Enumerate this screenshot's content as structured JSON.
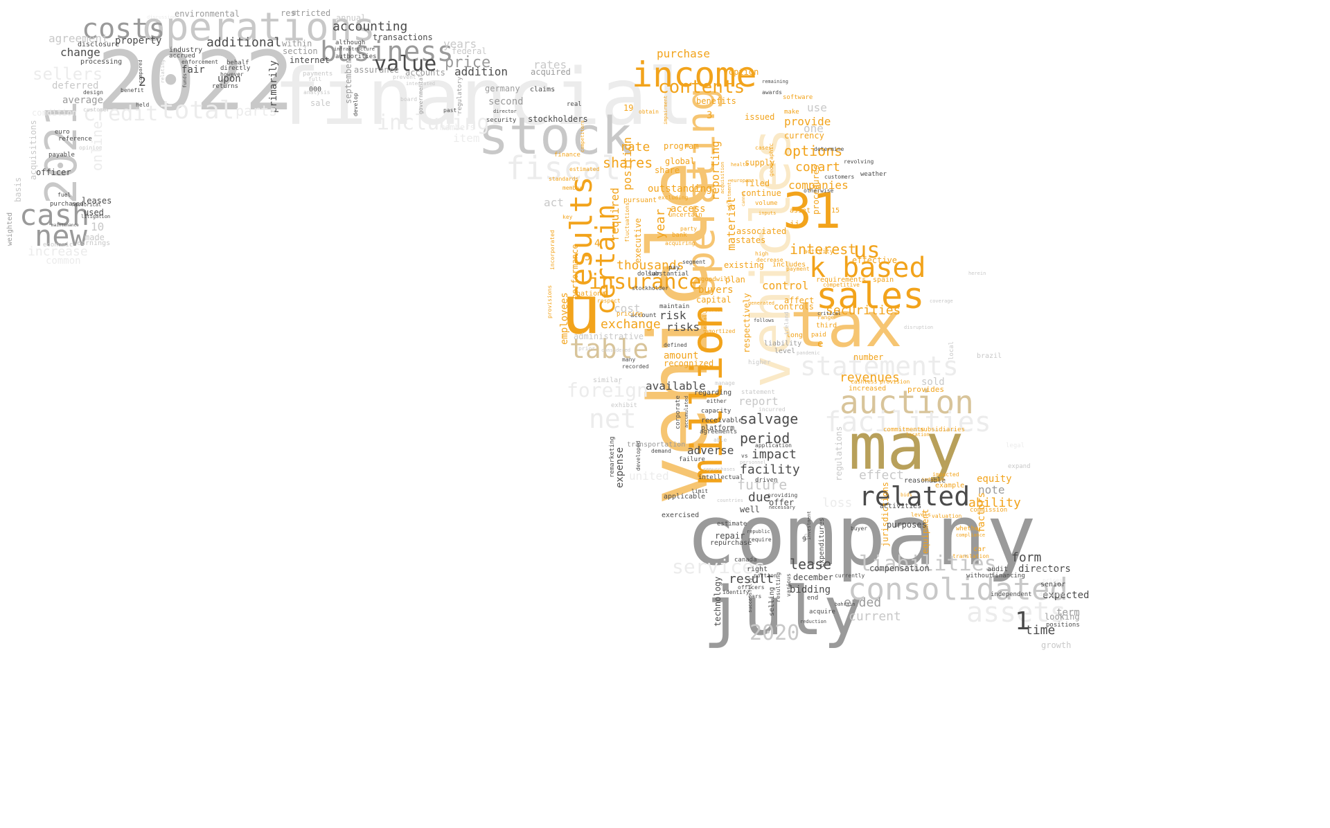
{
  "colors": {
    "background": "#ffffff",
    "gray_dark": "#4a4a4a",
    "gray_mid": "#9a9a9a",
    "gray_light": "#c8c8c8",
    "gray_pale": "#ececec",
    "orange": "#f2a31b",
    "orange_light": "#f6c572",
    "orange_pale": "#fae9c7",
    "gold": "#b8a05a",
    "tan": "#d8c49a"
  },
  "words": [
    {
      "text": "company"
    },
    {
      "text": "vehicle"
    },
    {
      "text": "july"
    },
    {
      "text": "2022"
    },
    {
      "text": "financial"
    },
    {
      "text": "vehicles"
    },
    {
      "text": "u"
    },
    {
      "text": "may"
    },
    {
      "text": "tax"
    },
    {
      "text": "31"
    },
    {
      "text": "stock"
    },
    {
      "text": "operations"
    },
    {
      "text": "million"
    },
    {
      "text": "operating"
    },
    {
      "text": "2021"
    },
    {
      "text": "sales"
    },
    {
      "text": "income"
    },
    {
      "text": "business"
    },
    {
      "text": "consolidated"
    },
    {
      "text": "related"
    },
    {
      "text": "k based"
    },
    {
      "text": "auction"
    },
    {
      "text": "facilities"
    },
    {
      "text": "liabilities"
    },
    {
      "text": "assets"
    },
    {
      "text": "statements"
    },
    {
      "text": "fiscal"
    },
    {
      "text": "results"
    },
    {
      "text": "costs"
    },
    {
      "text": "cash"
    },
    {
      "text": "new"
    },
    {
      "text": "value"
    },
    {
      "text": "table"
    },
    {
      "text": "certain"
    },
    {
      "text": "insurance"
    },
    {
      "text": "total"
    },
    {
      "text": "credit"
    },
    {
      "text": "including"
    },
    {
      "text": "net"
    },
    {
      "text": "contents"
    },
    {
      "text": "us"
    },
    {
      "text": "2020"
    },
    {
      "text": "price"
    },
    {
      "text": "additional"
    },
    {
      "text": "accounting"
    },
    {
      "text": "services"
    },
    {
      "text": "interest"
    },
    {
      "text": "options"
    },
    {
      "text": "shares"
    },
    {
      "text": "rate"
    },
    {
      "text": "thousands"
    },
    {
      "text": "exchange"
    },
    {
      "text": "securities"
    },
    {
      "text": "revenues"
    },
    {
      "text": "salvage"
    },
    {
      "text": "period"
    },
    {
      "text": "impact"
    },
    {
      "text": "facility"
    },
    {
      "text": "future"
    },
    {
      "text": "due"
    },
    {
      "text": "lease"
    },
    {
      "text": "result"
    },
    {
      "text": "ended"
    },
    {
      "text": "current"
    },
    {
      "text": "form"
    },
    {
      "text": "directors"
    },
    {
      "text": "time"
    },
    {
      "text": "ability"
    },
    {
      "text": "note"
    },
    {
      "text": "effect"
    },
    {
      "text": "risk"
    },
    {
      "text": "risks"
    },
    {
      "text": "cost"
    },
    {
      "text": "control"
    },
    {
      "text": "copart"
    },
    {
      "text": "companies"
    },
    {
      "text": "provide"
    },
    {
      "text": "one"
    },
    {
      "text": "currency"
    },
    {
      "text": "use"
    },
    {
      "text": "issued"
    },
    {
      "text": "benefits"
    },
    {
      "text": "reporting"
    },
    {
      "text": "material"
    },
    {
      "text": "position"
    },
    {
      "text": "required"
    },
    {
      "text": "year"
    },
    {
      "text": "program"
    },
    {
      "text": "global"
    },
    {
      "text": "share"
    },
    {
      "text": "purchase"
    },
    {
      "text": "option"
    },
    {
      "text": "outstanding"
    },
    {
      "text": "access"
    },
    {
      "text": "executive"
    },
    {
      "text": "supply"
    },
    {
      "text": "filed"
    },
    {
      "text": "continue"
    },
    {
      "text": "associated"
    },
    {
      "text": "states"
    },
    {
      "text": "existing"
    },
    {
      "text": "plan"
    },
    {
      "text": "buyers"
    },
    {
      "text": "capital"
    },
    {
      "text": "affect"
    },
    {
      "text": "controls"
    },
    {
      "text": "available"
    },
    {
      "text": "amount"
    },
    {
      "text": "recognized"
    },
    {
      "text": "report"
    },
    {
      "text": "adverse"
    },
    {
      "text": "expense"
    },
    {
      "text": "change"
    },
    {
      "text": "agreement"
    },
    {
      "text": "average"
    },
    {
      "text": "deferred"
    },
    {
      "text": "property"
    },
    {
      "text": "fair"
    },
    {
      "text": "upon"
    },
    {
      "text": "addition"
    },
    {
      "text": "accounts"
    },
    {
      "text": "assurance"
    },
    {
      "text": "years"
    },
    {
      "text": "federal"
    },
    {
      "text": "rates"
    },
    {
      "text": "acquired"
    },
    {
      "text": "second"
    },
    {
      "text": "germany"
    },
    {
      "text": "claims"
    },
    {
      "text": "stockholders"
    },
    {
      "text": "primarily"
    },
    {
      "text": "within"
    },
    {
      "text": "section"
    },
    {
      "text": "internet"
    },
    {
      "text": "transactions"
    },
    {
      "text": "environmental"
    },
    {
      "text": "restricted"
    },
    {
      "text": "annual"
    },
    {
      "text": "sellers"
    },
    {
      "text": "officer"
    },
    {
      "text": "leases"
    },
    {
      "text": "used"
    },
    {
      "text": "basis"
    },
    {
      "text": "weighted"
    },
    {
      "text": "acquisitions"
    },
    {
      "text": "processing"
    },
    {
      "text": "disclosure"
    },
    {
      "text": "reference"
    },
    {
      "text": "payable"
    },
    {
      "text": "euro"
    },
    {
      "text": "fuel"
    },
    {
      "text": "purchased"
    },
    {
      "text": "historical"
    },
    {
      "text": "litigation"
    },
    {
      "text": "maintenance"
    },
    {
      "text": "made"
    },
    {
      "text": "earnings"
    },
    {
      "text": "economic"
    },
    {
      "text": "10"
    },
    {
      "text": "common"
    },
    {
      "text": "increase"
    },
    {
      "text": "industry"
    },
    {
      "text": "directly"
    },
    {
      "text": "behalf"
    },
    {
      "text": "however"
    },
    {
      "text": "returns"
    },
    {
      "text": "accrued"
    },
    {
      "text": "enforcement"
    },
    {
      "text": "payments"
    },
    {
      "text": "full"
    },
    {
      "text": "sale"
    },
    {
      "text": "000"
    },
    {
      "text": "analysis"
    },
    {
      "text": "september"
    },
    {
      "text": "board"
    },
    {
      "text": "regulatory"
    },
    {
      "text": "past"
    },
    {
      "text": "develop"
    },
    {
      "text": "security"
    },
    {
      "text": "director"
    },
    {
      "text": "real"
    },
    {
      "text": "finance"
    },
    {
      "text": "standards"
    },
    {
      "text": "member"
    },
    {
      "text": "estimated"
    },
    {
      "text": "competitors"
    },
    {
      "text": "impairment"
    },
    {
      "text": "obtain"
    },
    {
      "text": "act"
    },
    {
      "text": "employees"
    },
    {
      "text": "performance"
    },
    {
      "text": "national"
    },
    {
      "text": "administrative"
    },
    {
      "text": "foreign"
    },
    {
      "text": "united"
    },
    {
      "text": "regarding"
    },
    {
      "text": "capacity"
    },
    {
      "text": "receivable"
    },
    {
      "text": "platform"
    },
    {
      "text": "transportation"
    },
    {
      "text": "demand"
    },
    {
      "text": "failure"
    },
    {
      "text": "intellectual"
    },
    {
      "text": "applicable"
    },
    {
      "text": "exercised"
    },
    {
      "text": "repair"
    },
    {
      "text": "repurchase"
    },
    {
      "text": "estimate"
    },
    {
      "text": "canada"
    },
    {
      "text": "right"
    },
    {
      "text": "portion"
    },
    {
      "text": "officers"
    },
    {
      "text": "bidding"
    },
    {
      "text": "december"
    },
    {
      "text": "compensation"
    },
    {
      "text": "technology"
    },
    {
      "text": "selling"
    },
    {
      "text": "end"
    },
    {
      "text": "acquire"
    },
    {
      "text": "identify"
    },
    {
      "text": "cars"
    },
    {
      "text": "currently"
    },
    {
      "text": "without"
    },
    {
      "text": "independent"
    },
    {
      "text": "expected"
    },
    {
      "text": "term"
    },
    {
      "text": "looking"
    },
    {
      "text": "positions"
    },
    {
      "text": "growth"
    },
    {
      "text": "senior"
    },
    {
      "text": "audit"
    },
    {
      "text": "financing"
    },
    {
      "text": "equity"
    },
    {
      "text": "example"
    },
    {
      "text": "reasonable"
    },
    {
      "text": "commission"
    },
    {
      "text": "factors"
    },
    {
      "text": "translation"
    },
    {
      "text": "expenditures"
    },
    {
      "text": "equipment"
    },
    {
      "text": "jurisdictions"
    },
    {
      "text": "purposes"
    },
    {
      "text": "buyer"
    },
    {
      "text": "activities"
    },
    {
      "text": "regulations"
    },
    {
      "text": "provides"
    },
    {
      "text": "sold"
    },
    {
      "text": "increased"
    },
    {
      "text": "cashless"
    },
    {
      "text": "provision"
    },
    {
      "text": "commitments"
    },
    {
      "text": "subsidiaries"
    },
    {
      "text": "spain"
    },
    {
      "text": "number"
    },
    {
      "text": "effective"
    },
    {
      "text": "activity"
    },
    {
      "text": "ii"
    },
    {
      "text": "high"
    },
    {
      "text": "decrease"
    },
    {
      "text": "includes"
    },
    {
      "text": "generated"
    },
    {
      "text": "liability"
    },
    {
      "text": "level"
    },
    {
      "text": "long"
    },
    {
      "text": "paid"
    },
    {
      "text": "third"
    },
    {
      "text": "range"
    },
    {
      "text": "requirements"
    },
    {
      "text": "competitive"
    },
    {
      "text": "asset"
    },
    {
      "text": "payment"
    },
    {
      "text": "volume"
    },
    {
      "text": "software"
    },
    {
      "text": "make"
    },
    {
      "text": "procedures"
    },
    {
      "text": "goodwill"
    },
    {
      "text": "respectively"
    },
    {
      "text": "pursuant"
    },
    {
      "text": "fluctuations"
    },
    {
      "text": "excluding"
    },
    {
      "text": "uncertain"
    },
    {
      "text": "party"
    },
    {
      "text": "bank"
    },
    {
      "text": "acquiring"
    },
    {
      "text": "segment"
    },
    {
      "text": "pay"
    },
    {
      "text": "substantial"
    },
    {
      "text": "dollar"
    },
    {
      "text": "stockholder"
    },
    {
      "text": "account"
    },
    {
      "text": "pricing"
    },
    {
      "text": "respect"
    },
    {
      "text": "maintain"
    },
    {
      "text": "defined"
    },
    {
      "text": "many"
    },
    {
      "text": "recorded"
    },
    {
      "text": "corporate"
    },
    {
      "text": "accumulated"
    },
    {
      "text": "agreements"
    },
    {
      "text": "statement"
    },
    {
      "text": "either"
    },
    {
      "text": "incurred"
    },
    {
      "text": "able"
    },
    {
      "text": "manage"
    },
    {
      "text": "exhibit"
    },
    {
      "text": "similar"
    },
    {
      "text": "prior"
    },
    {
      "text": "considered"
    },
    {
      "text": "remarketing"
    },
    {
      "text": "developed"
    },
    {
      "text": "limit"
    },
    {
      "text": "driven"
    },
    {
      "text": "offer"
    },
    {
      "text": "providing"
    },
    {
      "text": "well"
    },
    {
      "text": "necessary"
    },
    {
      "text": "countries"
    },
    {
      "text": "application"
    },
    {
      "text": "vs"
    },
    {
      "text": "personnel"
    },
    {
      "text": "repurchases"
    },
    {
      "text": "republic"
    },
    {
      "text": "require"
    },
    {
      "text": "loss"
    },
    {
      "text": "investment"
    },
    {
      "text": "item"
    },
    {
      "text": "members"
    },
    {
      "text": "authorities"
    },
    {
      "text": "although"
    },
    {
      "text": "infrastructure"
    },
    {
      "text": "governmental"
    },
    {
      "text": "funds"
    },
    {
      "text": "relating"
    },
    {
      "text": "compared"
    },
    {
      "text": "benefit"
    },
    {
      "text": "design"
    },
    {
      "text": "held"
    },
    {
      "text": "customer"
    },
    {
      "text": "opinion"
    },
    {
      "text": "condition"
    },
    {
      "text": "online"
    },
    {
      "text": "parts"
    },
    {
      "text": "brazil"
    },
    {
      "text": "local"
    },
    {
      "text": "weather"
    },
    {
      "text": "revolving"
    },
    {
      "text": "customers"
    },
    {
      "text": "determine"
    },
    {
      "text": "otherwise"
    },
    {
      "text": "health"
    },
    {
      "text": "european"
    },
    {
      "text": "geographic"
    },
    {
      "text": "adjustments"
    },
    {
      "text": "acquisition"
    },
    {
      "text": "awards"
    },
    {
      "text": "remaining"
    },
    {
      "text": "critical"
    },
    {
      "text": "reported"
    },
    {
      "text": "follows"
    },
    {
      "text": "pandemic"
    },
    {
      "text": "ireland"
    },
    {
      "text": "coverage"
    },
    {
      "text": "herein"
    },
    {
      "text": "bids"
    },
    {
      "text": "location"
    },
    {
      "text": "impacted"
    },
    {
      "text": "indicate"
    },
    {
      "text": "valuation"
    },
    {
      "text": "whether"
    },
    {
      "text": "compliance"
    },
    {
      "text": "car"
    },
    {
      "text": "levels"
    },
    {
      "text": "integrated"
    },
    {
      "text": "prevent"
    },
    {
      "text": "discussion"
    },
    {
      "text": "expand"
    },
    {
      "text": "legal"
    },
    {
      "text": "prices"
    },
    {
      "text": "designed"
    },
    {
      "text": "operate"
    },
    {
      "text": "bahrain"
    },
    {
      "text": "reduction"
    },
    {
      "text": "successfully"
    },
    {
      "text": "various"
    },
    {
      "text": "resulting"
    },
    {
      "text": "cannot"
    },
    {
      "text": "inputs"
    },
    {
      "text": "amortized"
    },
    {
      "text": "materially"
    },
    {
      "text": "incorporated"
    },
    {
      "text": "provisions"
    },
    {
      "text": "key"
    },
    {
      "text": "cases"
    },
    {
      "text": "higher"
    },
    {
      "text": "disruption"
    },
    {
      "text": "2"
    },
    {
      "text": "7"
    },
    {
      "text": "3"
    },
    {
      "text": "4"
    },
    {
      "text": "5"
    },
    {
      "text": "8"
    },
    {
      "text": "6"
    },
    {
      "text": "9"
    },
    {
      "text": "15"
    },
    {
      "text": "19"
    },
    {
      "text": "e"
    },
    {
      "text": "1"
    }
  ]
}
